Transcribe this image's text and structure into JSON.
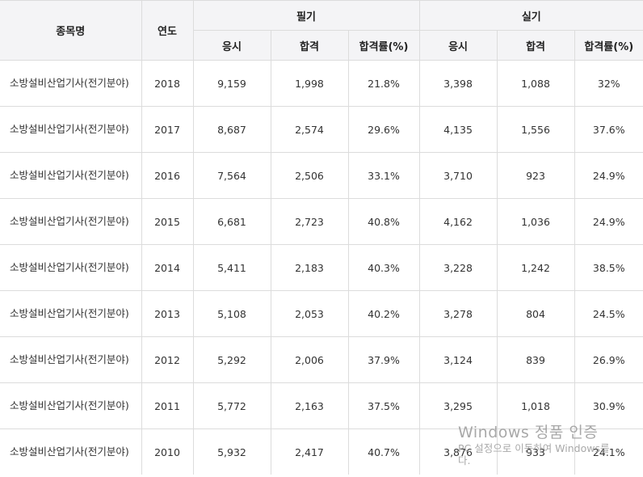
{
  "table": {
    "headers": {
      "name": "종목명",
      "year": "연도",
      "written": "필기",
      "practical": "실기",
      "sub": [
        "응시",
        "합격",
        "합격률(%)",
        "응시",
        "합격",
        "합격률(%)"
      ]
    },
    "rows": [
      {
        "name": "소방설비산업기사(전기분야)",
        "year": "2018",
        "w_apply": "9,159",
        "w_pass": "1,998",
        "w_rate": "21.8%",
        "p_apply": "3,398",
        "p_pass": "1,088",
        "p_rate": "32%"
      },
      {
        "name": "소방설비산업기사(전기분야)",
        "year": "2017",
        "w_apply": "8,687",
        "w_pass": "2,574",
        "w_rate": "29.6%",
        "p_apply": "4,135",
        "p_pass": "1,556",
        "p_rate": "37.6%"
      },
      {
        "name": "소방설비산업기사(전기분야)",
        "year": "2016",
        "w_apply": "7,564",
        "w_pass": "2,506",
        "w_rate": "33.1%",
        "p_apply": "3,710",
        "p_pass": "923",
        "p_rate": "24.9%"
      },
      {
        "name": "소방설비산업기사(전기분야)",
        "year": "2015",
        "w_apply": "6,681",
        "w_pass": "2,723",
        "w_rate": "40.8%",
        "p_apply": "4,162",
        "p_pass": "1,036",
        "p_rate": "24.9%"
      },
      {
        "name": "소방설비산업기사(전기분야)",
        "year": "2014",
        "w_apply": "5,411",
        "w_pass": "2,183",
        "w_rate": "40.3%",
        "p_apply": "3,228",
        "p_pass": "1,242",
        "p_rate": "38.5%"
      },
      {
        "name": "소방설비산업기사(전기분야)",
        "year": "2013",
        "w_apply": "5,108",
        "w_pass": "2,053",
        "w_rate": "40.2%",
        "p_apply": "3,278",
        "p_pass": "804",
        "p_rate": "24.5%"
      },
      {
        "name": "소방설비산업기사(전기분야)",
        "year": "2012",
        "w_apply": "5,292",
        "w_pass": "2,006",
        "w_rate": "37.9%",
        "p_apply": "3,124",
        "p_pass": "839",
        "p_rate": "26.9%"
      },
      {
        "name": "소방설비산업기사(전기분야)",
        "year": "2011",
        "w_apply": "5,772",
        "w_pass": "2,163",
        "w_rate": "37.5%",
        "p_apply": "3,295",
        "p_pass": "1,018",
        "p_rate": "30.9%"
      },
      {
        "name": "소방설비산업기사(전기분야)",
        "year": "2010",
        "w_apply": "5,932",
        "w_pass": "2,417",
        "w_rate": "40.7%",
        "p_apply": "3,876",
        "p_pass": "933",
        "p_rate": "24.1%"
      }
    ]
  },
  "watermark": {
    "title": "Windows 정품 인증",
    "subtitle": "PC 설정으로 이동하여 Windows를",
    "subtitle2": "다."
  }
}
